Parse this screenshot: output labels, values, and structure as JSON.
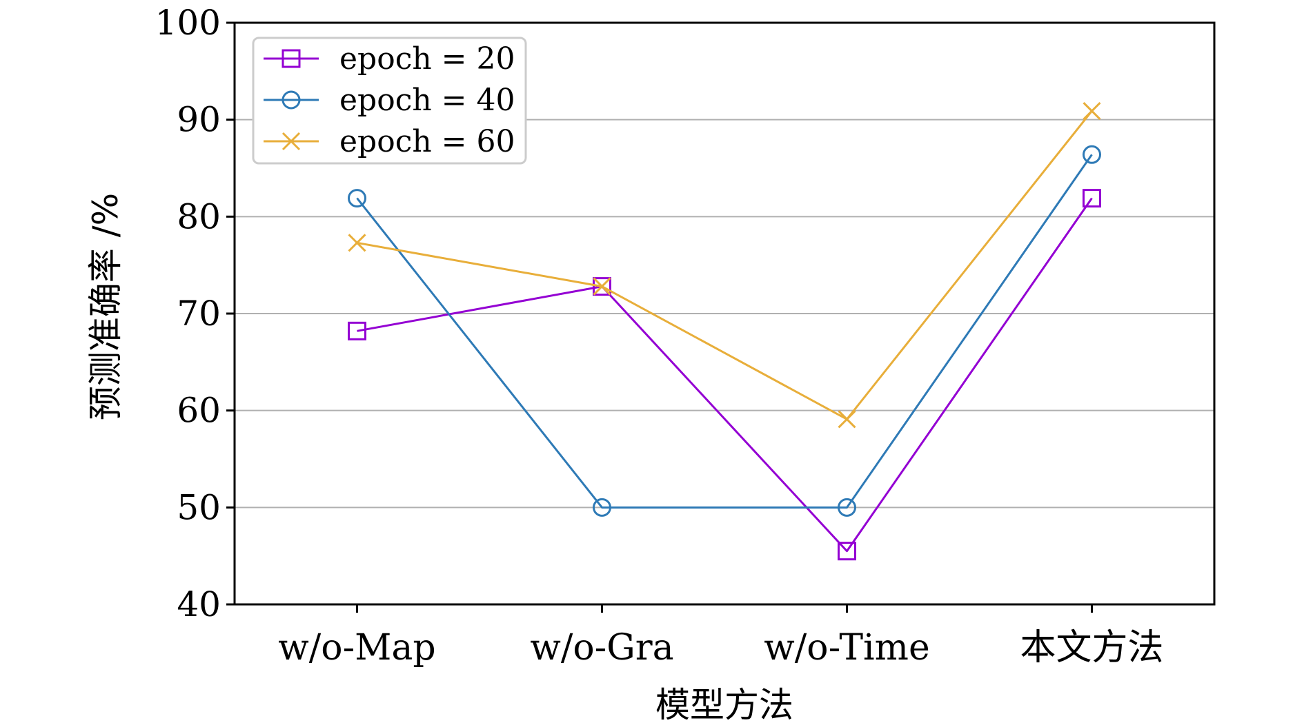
{
  "chart_data": {
    "type": "line",
    "title": "",
    "xlabel": "模型方法",
    "ylabel": "预测准确率 /%",
    "categories": [
      "w/o-Map",
      "w/o-Gra",
      "w/o-Time",
      "本文方法"
    ],
    "ylim": [
      40,
      100
    ],
    "yticks": [
      "40",
      "50",
      "60",
      "70",
      "80",
      "90",
      "100"
    ],
    "grid": "horizontal",
    "legend_position": "top-left",
    "series": [
      {
        "name": "epoch = 20",
        "values": [
          68.2,
          72.8,
          45.5,
          81.9
        ],
        "color": "#9400d3",
        "marker": "square"
      },
      {
        "name": "epoch = 40",
        "values": [
          81.9,
          50.0,
          50.0,
          86.4
        ],
        "color": "#2e7ab6",
        "marker": "circle"
      },
      {
        "name": "epoch = 60",
        "values": [
          77.3,
          72.8,
          59.1,
          90.9
        ],
        "color": "#e8ae3a",
        "marker": "x"
      }
    ]
  }
}
